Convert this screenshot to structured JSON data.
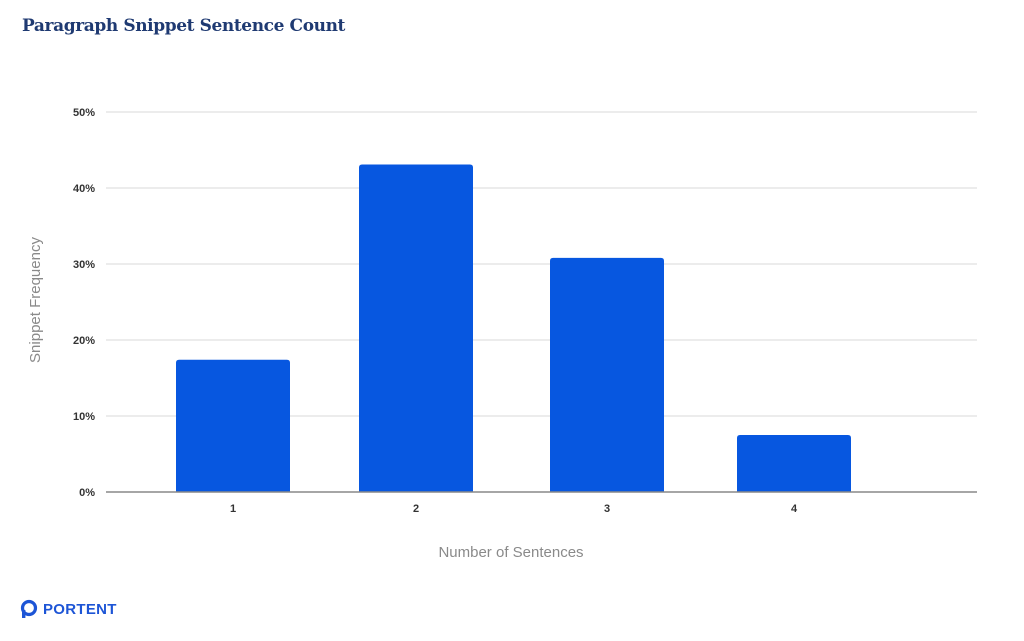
{
  "chart_data": {
    "type": "bar",
    "title": "Paragraph Snippet Sentence Count",
    "xlabel": "Number of Sentences",
    "ylabel": "Snippet Frequency",
    "categories": [
      "1",
      "2",
      "3",
      "4"
    ],
    "values": [
      17.4,
      43.1,
      30.8,
      7.5
    ],
    "ylim": [
      0,
      50
    ],
    "yticks": [
      0,
      10,
      20,
      30,
      40,
      50
    ],
    "ytick_labels": [
      "0%",
      "10%",
      "20%",
      "30%",
      "40%",
      "50%"
    ],
    "grid": true,
    "legend": "none"
  },
  "colors": {
    "bar": "#0757e0",
    "grid": "#d9d9d9",
    "baseline": "#888888",
    "title": "#1f3a72"
  },
  "branding": {
    "logo_text": "PORTENT",
    "logo_icon": "portent-o-mark-icon"
  }
}
